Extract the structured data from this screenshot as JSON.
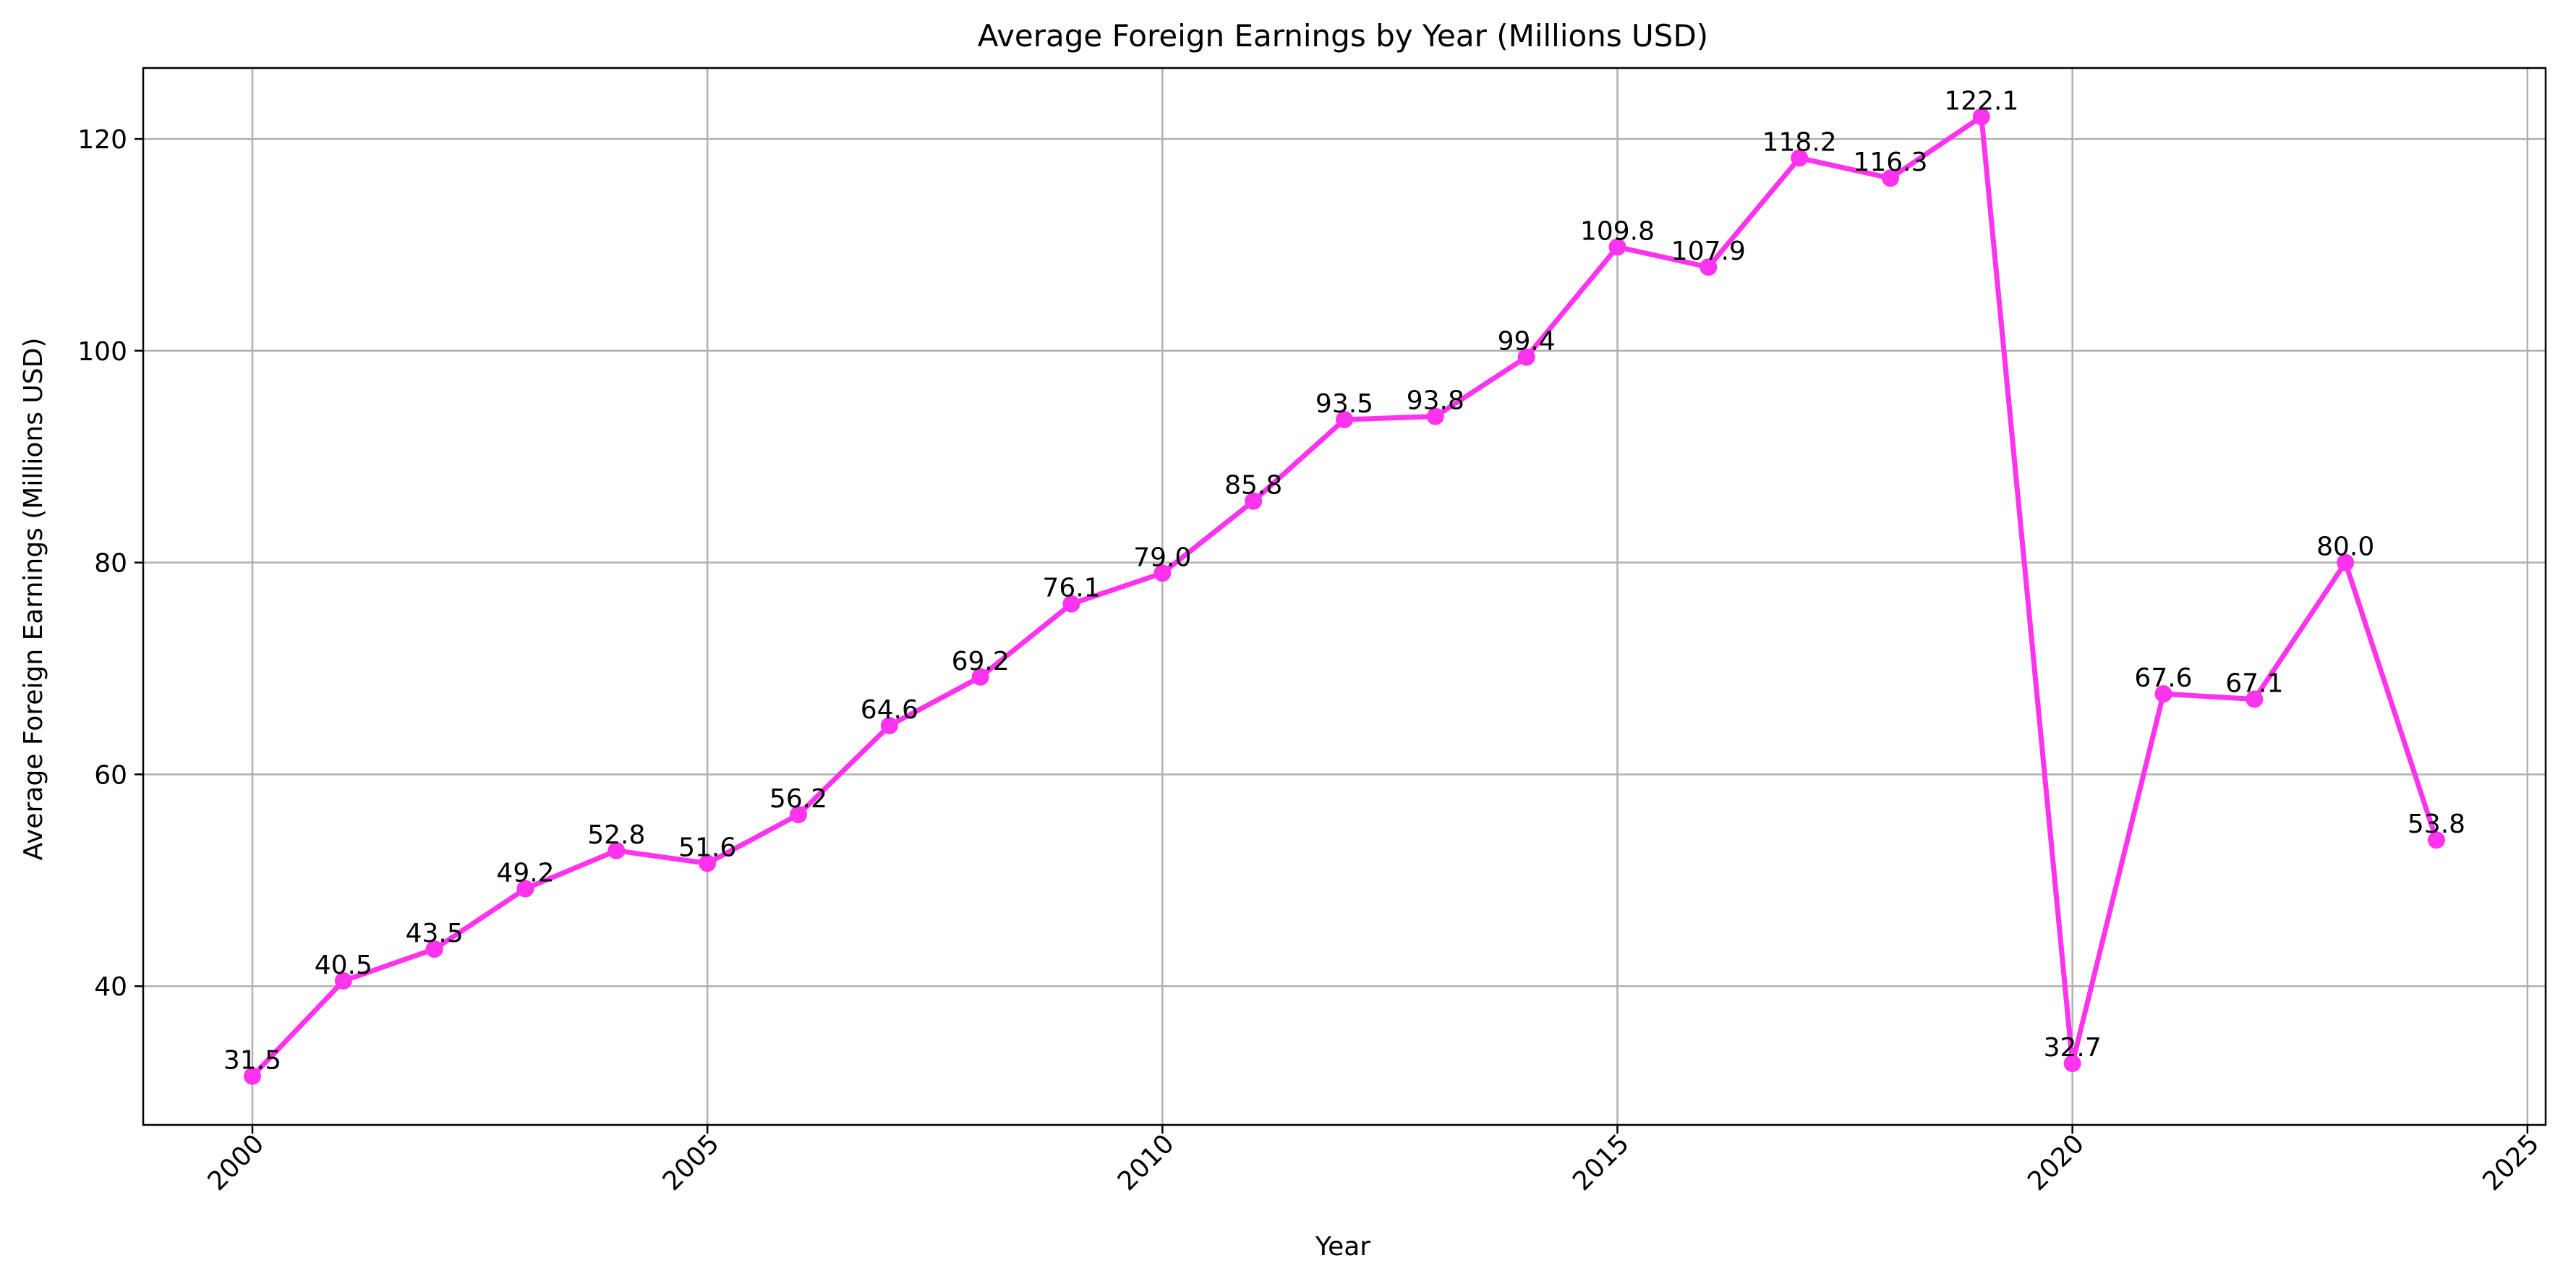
{
  "chart_data": {
    "type": "line",
    "title": "Average Foreign Earnings by Year (Millions USD)",
    "xlabel": "Year",
    "ylabel": "Average Foreign Earnings (Millions USD)",
    "xlim": [
      1998.8,
      2025.2
    ],
    "ylim": [
      26.9,
      126.7
    ],
    "x_ticks": [
      "2000",
      "2005",
      "2010",
      "2015",
      "2020",
      "2025"
    ],
    "y_ticks": [
      "40",
      "60",
      "80",
      "100",
      "120"
    ],
    "grid": true,
    "legend": "none",
    "series": [
      {
        "color": "#ff33ee",
        "x": [
          2000,
          2001,
          2002,
          2003,
          2004,
          2005,
          2006,
          2007,
          2008,
          2009,
          2010,
          2011,
          2012,
          2013,
          2014,
          2015,
          2016,
          2017,
          2018,
          2019,
          2020,
          2021,
          2022,
          2023,
          2024
        ],
        "y": [
          31.5,
          40.5,
          43.5,
          49.2,
          52.8,
          51.6,
          56.2,
          64.6,
          69.2,
          76.1,
          79.0,
          85.8,
          93.5,
          93.8,
          99.4,
          109.8,
          107.9,
          118.2,
          116.3,
          122.1,
          32.7,
          67.6,
          67.1,
          80.0,
          53.8
        ],
        "labels": [
          "31.5",
          "40.5",
          "43.5",
          "49.2",
          "52.8",
          "51.6",
          "56.2",
          "64.6",
          "69.2",
          "76.1",
          "79.0",
          "85.8",
          "93.5",
          "93.8",
          "99.4",
          "109.8",
          "107.9",
          "118.2",
          "116.3",
          "122.1",
          "32.7",
          "67.6",
          "67.1",
          "80.0",
          "53.8"
        ]
      }
    ]
  }
}
